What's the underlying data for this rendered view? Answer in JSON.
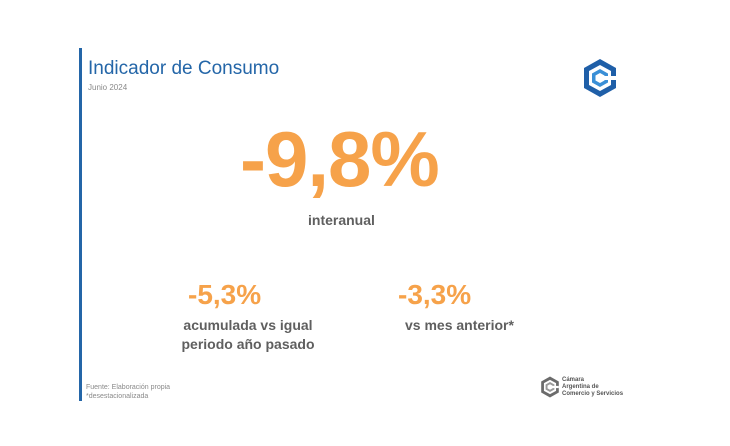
{
  "slide": {
    "title": "Indicador de Consumo",
    "subtitle": "Junio 2024",
    "accent_color": "#2466a8",
    "highlight_color": "#f6a24a"
  },
  "main_stat": {
    "value": "-9,8%",
    "label": "interanual"
  },
  "stats": [
    {
      "value": "-5,3%",
      "label_line1": "acumulada vs igual",
      "label_line2": "periodo año pasado"
    },
    {
      "value": "-3,3%",
      "label": "vs mes anterior*"
    }
  ],
  "footer": {
    "source": "Fuente: Elaboración propia",
    "note": "*desestacionalizada"
  },
  "logo": {
    "icon": "cac-logo-icon",
    "line1": "Cámara",
    "line2": "Argentina de",
    "line3": "Comercio y Servicios"
  }
}
